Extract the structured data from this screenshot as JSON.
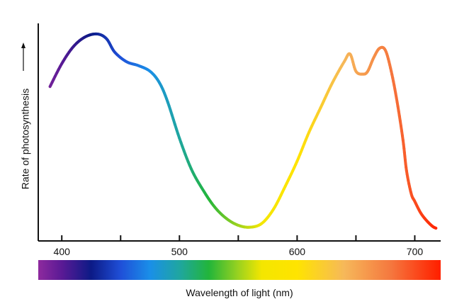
{
  "chart_data": {
    "type": "line",
    "title": "",
    "xlabel": "Wavelength of light (nm)",
    "ylabel": "Rate of photosynthesis",
    "xlim": [
      380,
      722
    ],
    "ylim": [
      0,
      100
    ],
    "x_ticks": [
      400,
      450,
      500,
      550,
      600,
      650,
      700
    ],
    "x_tick_labels": [
      "400",
      "",
      "500",
      "",
      "600",
      "",
      "700"
    ],
    "y_ticks_shown": false,
    "grid": false,
    "legend": "none",
    "color_bar": {
      "stops": [
        {
          "x": 380,
          "color": "#8e2a9e"
        },
        {
          "x": 400,
          "color": "#5a1a95"
        },
        {
          "x": 425,
          "color": "#0c1a86"
        },
        {
          "x": 450,
          "color": "#1f4fd8"
        },
        {
          "x": 475,
          "color": "#1a8fe8"
        },
        {
          "x": 500,
          "color": "#1fa6a0"
        },
        {
          "x": 525,
          "color": "#22b53a"
        },
        {
          "x": 550,
          "color": "#9ad21f"
        },
        {
          "x": 570,
          "color": "#f4e600"
        },
        {
          "x": 600,
          "color": "#ffe400"
        },
        {
          "x": 640,
          "color": "#f6b85a"
        },
        {
          "x": 680,
          "color": "#f5773e"
        },
        {
          "x": 720,
          "color": "#ff2200"
        }
      ]
    },
    "series": [
      {
        "color_by_wavelength": true,
        "x": [
          390,
          400,
          410,
          420,
          430,
          438,
          445,
          455,
          465,
          475,
          483,
          490,
          500,
          510,
          520,
          530,
          540,
          550,
          560,
          570,
          580,
          590,
          600,
          610,
          620,
          630,
          640,
          645,
          650,
          656,
          660,
          665,
          670,
          675,
          680,
          685,
          690,
          693,
          697,
          700,
          705,
          710,
          715,
          718
        ],
        "y": [
          74,
          86,
          95,
          100,
          101.5,
          99,
          92,
          87,
          85,
          82,
          76,
          66,
          47,
          31,
          20,
          11,
          5,
          1.5,
          0.5,
          2.5,
          10,
          22,
          35,
          50,
          63,
          76,
          87,
          91,
          82,
          80.5,
          82,
          89,
          94,
          93,
          82,
          66,
          46,
          30,
          18,
          14,
          8,
          4,
          1,
          0
        ]
      }
    ]
  }
}
